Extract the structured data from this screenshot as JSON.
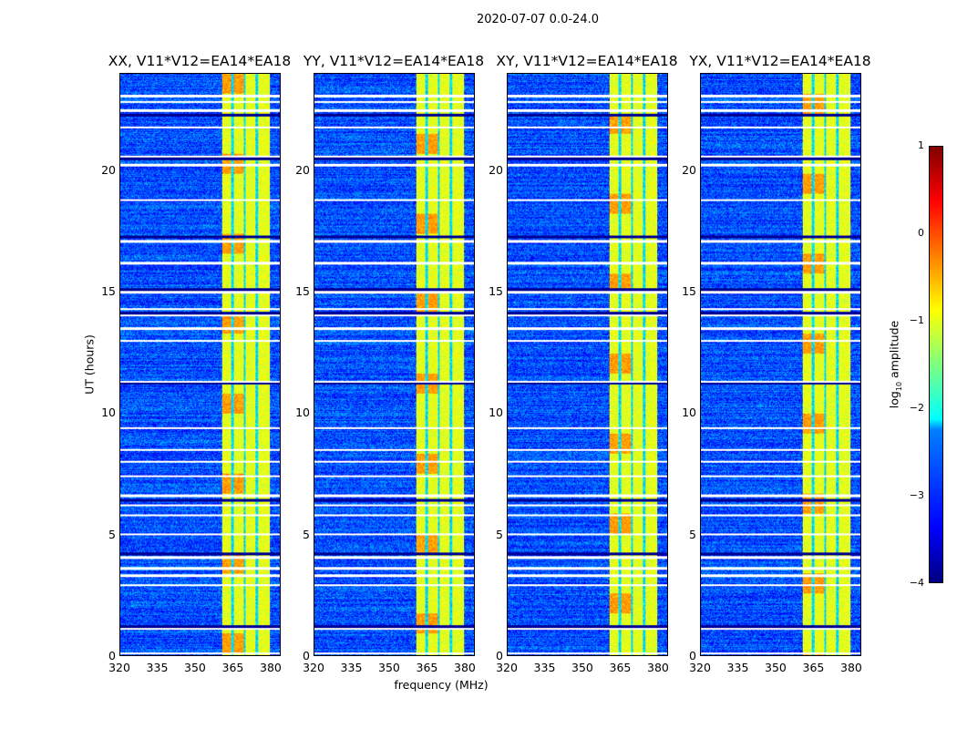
{
  "figure": {
    "suptitle": "2020-07-07 0.0-24.0"
  },
  "chart_data": {
    "type": "heatmap",
    "title": "2020-07-07 0.0-24.0",
    "xlabel": "frequency (MHz)",
    "ylabel": "UT (hours)",
    "xlim": [
      320,
      384
    ],
    "ylim": [
      0,
      24
    ],
    "xticks": [
      "320",
      "335",
      "350",
      "365",
      "380"
    ],
    "yticks": [
      "0",
      "5",
      "10",
      "15",
      "20"
    ],
    "panels": [
      {
        "title": "XX, V11*V12=EA14*EA18"
      },
      {
        "title": "YY, V11*V12=EA14*EA18"
      },
      {
        "title": "XY, V11*V12=EA14*EA18"
      },
      {
        "title": "YX, V11*V12=EA14*EA18"
      }
    ],
    "colorbar": {
      "label_prefix": "log",
      "label_sub": "10",
      "label_suffix": " amplitude",
      "range": [
        -4,
        1
      ],
      "ticks": [
        "1",
        "0",
        "−1",
        "−2",
        "−3",
        "−4"
      ],
      "colormap": "jet"
    },
    "background_level": -3.0,
    "band_MHz": [
      360.5,
      380
    ],
    "band_level": -1.0,
    "flagged_hours": [
      0.1,
      1.1,
      2.9,
      3.3,
      3.6,
      4.05,
      5.0,
      5.8,
      6.2,
      6.6,
      7.4,
      8.0,
      8.5,
      9.4,
      11.3,
      13.0,
      13.5,
      14.05,
      14.3,
      15.0,
      16.2,
      17.1,
      18.8,
      20.25,
      20.6,
      21.8,
      22.5,
      22.85,
      23.1
    ],
    "dark_hours": [
      1.2,
      4.2,
      6.4,
      11.25,
      14.15,
      15.1,
      17.3,
      20.5,
      22.3
    ]
  }
}
